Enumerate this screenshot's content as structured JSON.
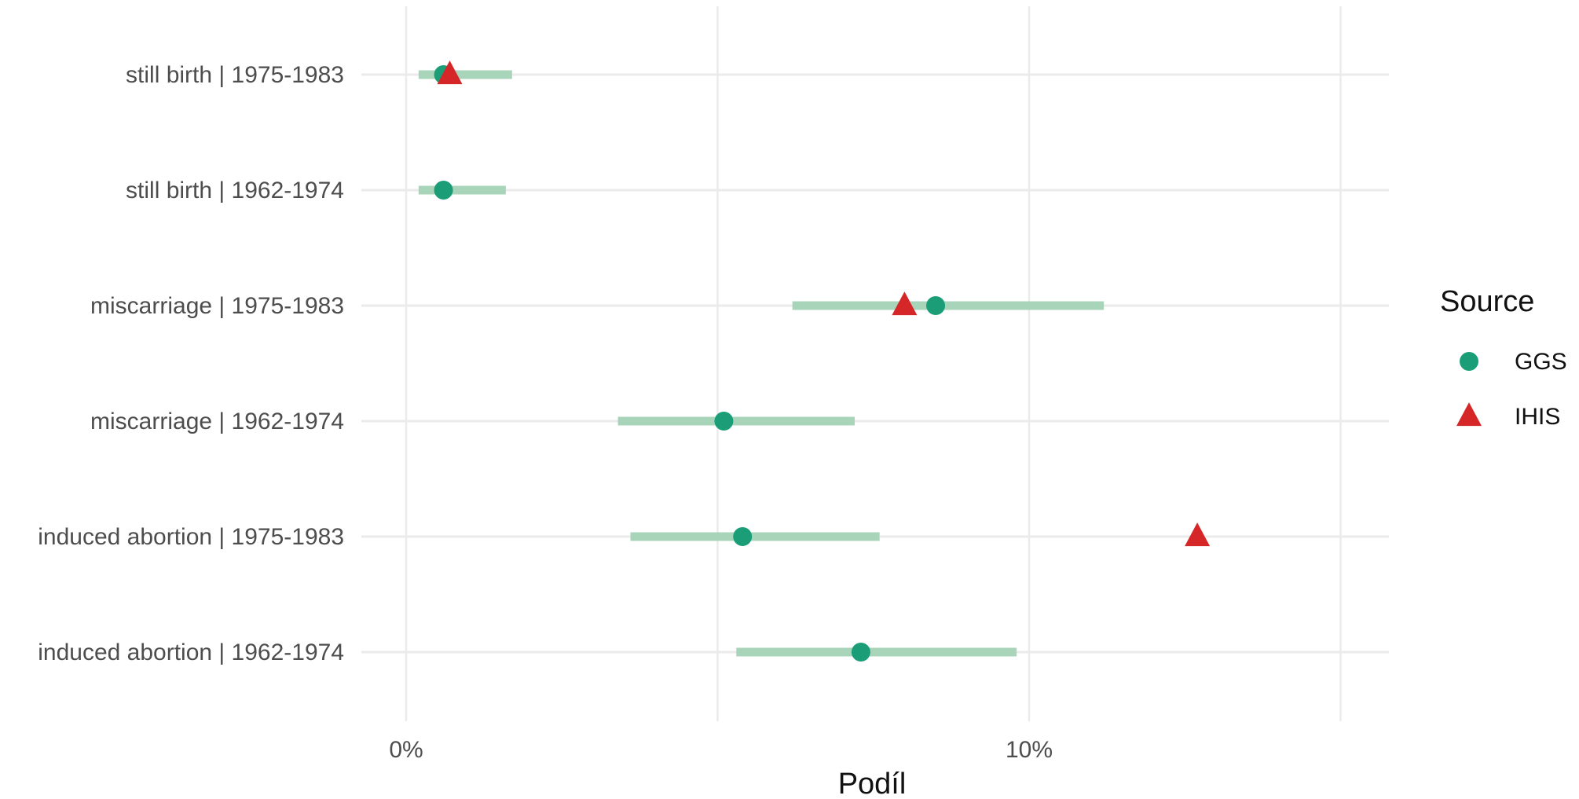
{
  "chart_data": {
    "type": "scatter",
    "title": "",
    "xlabel": "Podíl",
    "ylabel": "",
    "xlim": [
      -1.5,
      15.8
    ],
    "x_ticks": [
      {
        "value": 0,
        "label": "0%"
      },
      {
        "value": 10,
        "label": "10%"
      }
    ],
    "x_gridlines": [
      0,
      5,
      10,
      15
    ],
    "grid": true,
    "legend": {
      "title": "Source",
      "placement": "right",
      "entries": [
        {
          "name": "GGS",
          "shape": "circle",
          "color": "#1b9e77"
        },
        {
          "name": "IHIS",
          "shape": "triangle",
          "color": "#d62728"
        }
      ]
    },
    "interval_color": "#a8d5ba",
    "categories": [
      "still birth | 1975-1983",
      "still birth | 1962-1974",
      "miscarriage | 1975-1983",
      "miscarriage | 1962-1974",
      "induced abortion | 1975-1983",
      "induced abortion | 1962-1974"
    ],
    "series": [
      {
        "name": "GGS",
        "values": [
          0.6,
          0.6,
          8.5,
          5.1,
          5.4,
          7.3
        ],
        "ci_low": [
          0.2,
          0.2,
          6.2,
          3.4,
          3.6,
          5.3
        ],
        "ci_high": [
          1.7,
          1.6,
          11.2,
          7.2,
          7.6,
          9.8
        ]
      },
      {
        "name": "IHIS",
        "values": [
          0.7,
          null,
          8.0,
          null,
          12.7,
          null
        ]
      }
    ]
  }
}
